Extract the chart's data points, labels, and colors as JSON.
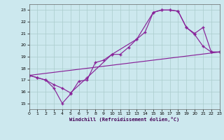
{
  "background_color": "#cce8ee",
  "grid_color": "#aacccc",
  "line_color": "#882299",
  "xlim": [
    0,
    23
  ],
  "ylim": [
    14.5,
    23.5
  ],
  "yticks": [
    15,
    16,
    17,
    18,
    19,
    20,
    21,
    22,
    23
  ],
  "xticks": [
    0,
    1,
    2,
    3,
    4,
    5,
    6,
    7,
    8,
    9,
    10,
    11,
    12,
    13,
    14,
    15,
    16,
    17,
    18,
    19,
    20,
    21,
    22,
    23
  ],
  "xlabel": "Windchill (Refroidissement éolien,°C)",
  "curve1_x": [
    0,
    1,
    2,
    3,
    4,
    5,
    6,
    7,
    8,
    9,
    10,
    11,
    12,
    13,
    14,
    15,
    16,
    17,
    18,
    19,
    20,
    21,
    22,
    23
  ],
  "curve1_y": [
    17.4,
    17.2,
    17.0,
    16.3,
    15.0,
    15.8,
    16.9,
    17.0,
    18.5,
    18.7,
    19.2,
    19.2,
    19.8,
    20.5,
    21.1,
    22.8,
    23.0,
    23.0,
    22.9,
    21.5,
    20.9,
    19.9,
    19.4,
    19.4
  ],
  "curve2_x": [
    0,
    1,
    2,
    3,
    4,
    5,
    7,
    10,
    13,
    15,
    16,
    17,
    18,
    19,
    20,
    21,
    22,
    23
  ],
  "curve2_y": [
    17.4,
    17.2,
    17.0,
    16.6,
    16.3,
    15.9,
    17.2,
    19.2,
    20.5,
    22.8,
    23.0,
    23.0,
    22.9,
    21.5,
    21.0,
    21.5,
    19.4,
    19.4
  ],
  "line_x": [
    0,
    23
  ],
  "line_y": [
    17.4,
    19.4
  ]
}
